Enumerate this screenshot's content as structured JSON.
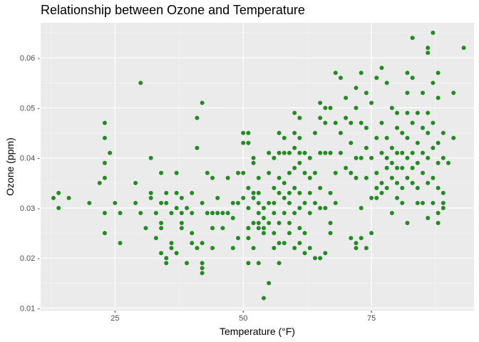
{
  "chart_data": {
    "type": "scatter",
    "title": "Relationship between Ozone and Temperature",
    "xlabel": "Temperature (°F)",
    "ylabel": "Ozone (ppm)",
    "xlim": [
      10.5,
      95
    ],
    "ylim": [
      0.0095,
      0.067
    ],
    "xticks": [
      25,
      50,
      75
    ],
    "xtick_labels": [
      "25",
      "50",
      "75"
    ],
    "yticks": [
      0.01,
      0.02,
      0.03,
      0.04,
      0.05,
      0.06
    ],
    "ytick_labels": [
      "0.01 -",
      "0.02 -",
      "0.03 -",
      "0.04 -",
      "0.05 -",
      "0.06 -"
    ],
    "grid": true,
    "point_color": "#228b22",
    "panel_color": "#ebebeb",
    "points": [
      [
        13,
        0.032
      ],
      [
        14,
        0.033
      ],
      [
        14,
        0.03
      ],
      [
        16,
        0.032
      ],
      [
        20,
        0.031
      ],
      [
        22,
        0.035
      ],
      [
        23,
        0.047
      ],
      [
        23,
        0.044
      ],
      [
        23,
        0.039
      ],
      [
        23,
        0.036
      ],
      [
        23,
        0.029
      ],
      [
        23,
        0.025
      ],
      [
        24,
        0.041
      ],
      [
        25,
        0.031
      ],
      [
        26,
        0.029
      ],
      [
        26,
        0.023
      ],
      [
        29,
        0.035
      ],
      [
        29,
        0.031
      ],
      [
        30,
        0.055
      ],
      [
        30,
        0.029
      ],
      [
        31,
        0.026
      ],
      [
        32,
        0.04
      ],
      [
        32,
        0.033
      ],
      [
        32,
        0.032
      ],
      [
        33,
        0.029
      ],
      [
        33,
        0.024
      ],
      [
        34,
        0.037
      ],
      [
        34,
        0.031
      ],
      [
        34,
        0.027
      ],
      [
        34,
        0.026
      ],
      [
        34,
        0.021
      ],
      [
        35,
        0.033
      ],
      [
        35,
        0.031
      ],
      [
        35,
        0.02
      ],
      [
        35,
        0.019
      ],
      [
        36,
        0.029
      ],
      [
        36,
        0.023
      ],
      [
        36,
        0.022
      ],
      [
        37,
        0.037
      ],
      [
        37,
        0.033
      ],
      [
        37,
        0.03
      ],
      [
        37,
        0.021
      ],
      [
        38,
        0.032
      ],
      [
        38,
        0.029
      ],
      [
        38,
        0.027
      ],
      [
        38,
        0.026
      ],
      [
        39,
        0.03
      ],
      [
        39,
        0.019
      ],
      [
        40,
        0.033
      ],
      [
        40,
        0.029
      ],
      [
        40,
        0.025
      ],
      [
        40,
        0.023
      ],
      [
        41,
        0.048
      ],
      [
        41,
        0.042
      ],
      [
        41,
        0.022
      ],
      [
        42,
        0.051
      ],
      [
        42,
        0.031
      ],
      [
        42,
        0.023
      ],
      [
        42,
        0.019
      ],
      [
        42,
        0.018
      ],
      [
        42,
        0.017
      ],
      [
        43,
        0.037
      ],
      [
        43,
        0.029
      ],
      [
        44,
        0.036
      ],
      [
        44,
        0.029
      ],
      [
        44,
        0.026
      ],
      [
        44,
        0.022
      ],
      [
        45,
        0.032
      ],
      [
        45,
        0.029
      ],
      [
        46,
        0.029
      ],
      [
        46,
        0.026
      ],
      [
        47,
        0.036
      ],
      [
        47,
        0.029
      ],
      [
        48,
        0.031
      ],
      [
        48,
        0.028
      ],
      [
        48,
        0.022
      ],
      [
        49,
        0.037
      ],
      [
        49,
        0.031
      ],
      [
        49,
        0.024
      ],
      [
        50,
        0.045
      ],
      [
        50,
        0.043
      ],
      [
        50,
        0.037
      ],
      [
        50,
        0.032
      ],
      [
        51,
        0.045
      ],
      [
        51,
        0.043
      ],
      [
        51,
        0.034
      ],
      [
        51,
        0.03
      ],
      [
        51,
        0.026
      ],
      [
        51,
        0.024
      ],
      [
        51,
        0.019
      ],
      [
        52,
        0.04
      ],
      [
        52,
        0.039
      ],
      [
        52,
        0.033
      ],
      [
        52,
        0.032
      ],
      [
        52,
        0.027
      ],
      [
        52,
        0.022
      ],
      [
        53,
        0.036
      ],
      [
        53,
        0.033
      ],
      [
        53,
        0.031
      ],
      [
        53,
        0.029
      ],
      [
        53,
        0.027
      ],
      [
        53,
        0.026
      ],
      [
        53,
        0.019
      ],
      [
        54,
        0.03
      ],
      [
        54,
        0.028
      ],
      [
        54,
        0.026
      ],
      [
        54,
        0.025
      ],
      [
        54,
        0.012
      ],
      [
        55,
        0.041
      ],
      [
        55,
        0.037
      ],
      [
        55,
        0.031
      ],
      [
        55,
        0.027
      ],
      [
        55,
        0.015
      ],
      [
        56,
        0.04
      ],
      [
        56,
        0.034
      ],
      [
        56,
        0.031
      ],
      [
        56,
        0.029
      ],
      [
        56,
        0.025
      ],
      [
        56,
        0.022
      ],
      [
        57,
        0.045
      ],
      [
        57,
        0.041
      ],
      [
        57,
        0.036
      ],
      [
        57,
        0.033
      ],
      [
        57,
        0.027
      ],
      [
        57,
        0.023
      ],
      [
        57,
        0.019
      ],
      [
        58,
        0.044
      ],
      [
        58,
        0.041
      ],
      [
        58,
        0.035
      ],
      [
        58,
        0.032
      ],
      [
        58,
        0.029
      ],
      [
        58,
        0.023
      ],
      [
        59,
        0.041
      ],
      [
        59,
        0.037
      ],
      [
        59,
        0.033
      ],
      [
        59,
        0.031
      ],
      [
        59,
        0.027
      ],
      [
        59,
        0.025
      ],
      [
        60,
        0.049
      ],
      [
        60,
        0.045
      ],
      [
        60,
        0.042
      ],
      [
        60,
        0.038
      ],
      [
        60,
        0.034
      ],
      [
        60,
        0.029
      ],
      [
        60,
        0.022
      ],
      [
        61,
        0.048
      ],
      [
        61,
        0.044
      ],
      [
        61,
        0.041
      ],
      [
        61,
        0.039
      ],
      [
        61,
        0.033
      ],
      [
        61,
        0.03
      ],
      [
        61,
        0.026
      ],
      [
        61,
        0.023
      ],
      [
        62,
        0.041
      ],
      [
        62,
        0.037
      ],
      [
        62,
        0.031
      ],
      [
        62,
        0.025
      ],
      [
        62,
        0.021
      ],
      [
        63,
        0.04
      ],
      [
        63,
        0.036
      ],
      [
        63,
        0.033
      ],
      [
        63,
        0.029
      ],
      [
        63,
        0.022
      ],
      [
        64,
        0.045
      ],
      [
        64,
        0.037
      ],
      [
        64,
        0.031
      ],
      [
        64,
        0.02
      ],
      [
        65,
        0.051
      ],
      [
        65,
        0.048
      ],
      [
        65,
        0.041
      ],
      [
        65,
        0.034
      ],
      [
        65,
        0.03
      ],
      [
        65,
        0.02
      ],
      [
        66,
        0.05
      ],
      [
        66,
        0.047
      ],
      [
        66,
        0.041
      ],
      [
        66,
        0.03
      ],
      [
        66,
        0.021
      ],
      [
        67,
        0.05
      ],
      [
        67,
        0.041
      ],
      [
        67,
        0.033
      ],
      [
        67,
        0.027
      ],
      [
        67,
        0.025
      ],
      [
        68,
        0.057
      ],
      [
        68,
        0.047
      ],
      [
        68,
        0.037
      ],
      [
        68,
        0.031
      ],
      [
        69,
        0.056
      ],
      [
        69,
        0.045
      ],
      [
        69,
        0.041
      ],
      [
        70,
        0.052
      ],
      [
        70,
        0.048
      ],
      [
        70,
        0.038
      ],
      [
        71,
        0.047
      ],
      [
        71,
        0.043
      ],
      [
        71,
        0.037
      ],
      [
        71,
        0.024
      ],
      [
        72,
        0.054
      ],
      [
        72,
        0.05
      ],
      [
        72,
        0.04
      ],
      [
        72,
        0.036
      ],
      [
        72,
        0.023
      ],
      [
        72,
        0.022
      ],
      [
        73,
        0.057
      ],
      [
        73,
        0.047
      ],
      [
        73,
        0.04
      ],
      [
        73,
        0.03
      ],
      [
        73,
        0.024
      ],
      [
        74,
        0.053
      ],
      [
        74,
        0.046
      ],
      [
        74,
        0.042
      ],
      [
        74,
        0.036
      ],
      [
        74,
        0.022
      ],
      [
        75,
        0.051
      ],
      [
        75,
        0.04
      ],
      [
        75,
        0.032
      ],
      [
        75,
        0.025
      ],
      [
        76,
        0.056
      ],
      [
        76,
        0.044
      ],
      [
        76,
        0.037
      ],
      [
        76,
        0.034
      ],
      [
        76,
        0.032
      ],
      [
        77,
        0.058
      ],
      [
        77,
        0.047
      ],
      [
        77,
        0.041
      ],
      [
        77,
        0.035
      ],
      [
        77,
        0.033
      ],
      [
        78,
        0.055
      ],
      [
        78,
        0.044
      ],
      [
        78,
        0.04
      ],
      [
        78,
        0.038
      ],
      [
        78,
        0.034
      ],
      [
        79,
        0.05
      ],
      [
        79,
        0.042
      ],
      [
        79,
        0.039
      ],
      [
        79,
        0.036
      ],
      [
        79,
        0.029
      ],
      [
        80,
        0.049
      ],
      [
        80,
        0.046
      ],
      [
        80,
        0.041
      ],
      [
        80,
        0.038
      ],
      [
        80,
        0.035
      ],
      [
        80,
        0.032
      ],
      [
        81,
        0.045
      ],
      [
        81,
        0.041
      ],
      [
        81,
        0.038
      ],
      [
        81,
        0.034
      ],
      [
        81,
        0.031
      ],
      [
        82,
        0.057
      ],
      [
        82,
        0.053
      ],
      [
        82,
        0.049
      ],
      [
        82,
        0.044
      ],
      [
        82,
        0.04
      ],
      [
        82,
        0.036
      ],
      [
        82,
        0.027
      ],
      [
        83,
        0.064
      ],
      [
        83,
        0.056
      ],
      [
        83,
        0.047
      ],
      [
        83,
        0.041
      ],
      [
        83,
        0.038
      ],
      [
        83,
        0.035
      ],
      [
        84,
        0.049
      ],
      [
        84,
        0.043
      ],
      [
        84,
        0.039
      ],
      [
        84,
        0.034
      ],
      [
        84,
        0.031
      ],
      [
        85,
        0.053
      ],
      [
        85,
        0.046
      ],
      [
        85,
        0.041
      ],
      [
        85,
        0.037
      ],
      [
        85,
        0.031
      ],
      [
        86,
        0.062
      ],
      [
        86,
        0.061
      ],
      [
        86,
        0.049
      ],
      [
        86,
        0.045
      ],
      [
        86,
        0.04
      ],
      [
        86,
        0.035
      ],
      [
        86,
        0.028
      ],
      [
        87,
        0.065
      ],
      [
        87,
        0.055
      ],
      [
        87,
        0.047
      ],
      [
        87,
        0.042
      ],
      [
        87,
        0.036
      ],
      [
        87,
        0.031
      ],
      [
        88,
        0.057
      ],
      [
        88,
        0.052
      ],
      [
        88,
        0.043
      ],
      [
        88,
        0.039
      ],
      [
        88,
        0.034
      ],
      [
        88,
        0.029
      ],
      [
        88,
        0.027
      ],
      [
        89,
        0.045
      ],
      [
        89,
        0.04
      ],
      [
        89,
        0.033
      ],
      [
        89,
        0.031
      ],
      [
        89,
        0.03
      ],
      [
        90,
        0.039
      ],
      [
        91,
        0.053
      ],
      [
        91,
        0.044
      ],
      [
        93,
        0.062
      ]
    ]
  }
}
